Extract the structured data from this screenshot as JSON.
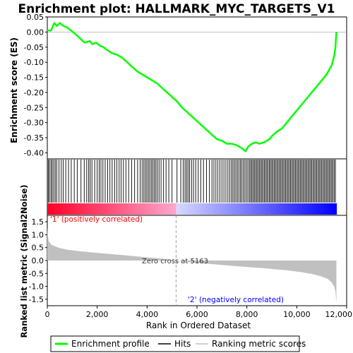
{
  "chart_data": {
    "type": "line",
    "title": "Enrichment plot: HALLMARK_MYC_TARGETS_V1",
    "top_panel": {
      "ylabel": "Enrichment score (ES)",
      "ylim": [
        -0.42,
        0.05
      ],
      "yticks": [
        "0.05",
        "0.00",
        "-0.05",
        "-0.10",
        "-0.15",
        "-0.20",
        "-0.25",
        "-0.30",
        "-0.35",
        "-0.40"
      ],
      "ytick_values": [
        0.05,
        0.0,
        -0.05,
        -0.1,
        -0.15,
        -0.2,
        -0.25,
        -0.3,
        -0.35,
        -0.4
      ],
      "series": [
        {
          "name": "Enrichment profile",
          "color": "#00ff00",
          "x": [
            0,
            150,
            280,
            380,
            500,
            650,
            800,
            950,
            1100,
            1300,
            1500,
            1700,
            1800,
            1950,
            2100,
            2250,
            2400,
            2600,
            2800,
            3000,
            3200,
            3400,
            3600,
            3800,
            4000,
            4200,
            4400,
            4600,
            4800,
            5000,
            5200,
            5400,
            5600,
            5800,
            6000,
            6200,
            6400,
            6600,
            6800,
            7000,
            7200,
            7400,
            7600,
            7800,
            7950,
            8050,
            8200,
            8350,
            8500,
            8700,
            8900,
            9000,
            9200,
            9400,
            9600,
            9800,
            10000,
            10200,
            10400,
            10600,
            10800,
            11000,
            11200,
            11400,
            11500,
            11550,
            11590
          ],
          "y": [
            0.005,
            0.005,
            0.03,
            0.02,
            0.03,
            0.02,
            0.015,
            0.005,
            -0.005,
            -0.02,
            -0.035,
            -0.03,
            -0.04,
            -0.035,
            -0.045,
            -0.05,
            -0.06,
            -0.07,
            -0.075,
            -0.085,
            -0.1,
            -0.115,
            -0.13,
            -0.14,
            -0.15,
            -0.16,
            -0.17,
            -0.185,
            -0.2,
            -0.215,
            -0.23,
            -0.25,
            -0.265,
            -0.28,
            -0.295,
            -0.31,
            -0.325,
            -0.34,
            -0.355,
            -0.36,
            -0.37,
            -0.37,
            -0.375,
            -0.385,
            -0.395,
            -0.38,
            -0.37,
            -0.365,
            -0.37,
            -0.365,
            -0.355,
            -0.345,
            -0.33,
            -0.32,
            -0.3,
            -0.28,
            -0.26,
            -0.24,
            -0.22,
            -0.2,
            -0.18,
            -0.16,
            -0.14,
            -0.11,
            -0.08,
            -0.05,
            0.0
          ]
        }
      ]
    },
    "middle_panel": {
      "hits_label": "Hits",
      "hit_positions": [
        40,
        90,
        150,
        200,
        260,
        320,
        380,
        470,
        560,
        640,
        740,
        850,
        960,
        1080,
        1200,
        1350,
        1480,
        1580,
        1660,
        1720,
        1790,
        1900,
        2000,
        2080,
        2150,
        2230,
        2320,
        2420,
        2510,
        2600,
        2700,
        2790,
        2880,
        2960,
        3050,
        3150,
        3260,
        3380,
        3500,
        3620,
        3720,
        3800,
        3870,
        3930,
        3990,
        4050,
        4110,
        4170,
        4230,
        4290,
        4350,
        4410,
        4480,
        4560,
        4660,
        4760,
        4870,
        5000,
        5200,
        5350,
        5450,
        5520,
        5580,
        5640,
        5700,
        5780,
        5860,
        5950,
        6050,
        6150,
        6260,
        6380,
        6500,
        6600,
        6680,
        6760,
        6840,
        6920,
        7000,
        7080,
        7160,
        7240,
        7310,
        7380,
        7440,
        7500,
        7560,
        7620,
        7680,
        7740,
        7800,
        7860,
        7920,
        7980,
        8040,
        8100,
        8150,
        8200,
        8250,
        8300,
        8350,
        8400,
        8450,
        8500,
        8550,
        8600,
        8650,
        8700,
        8750,
        8800,
        8850,
        8900,
        8950,
        9000,
        9050,
        9100,
        9150,
        9200,
        9250,
        9300,
        9350,
        9400,
        9450,
        9500,
        9550,
        9600,
        9650,
        9700,
        9750,
        9800,
        9850,
        9900,
        9950,
        10000,
        10050,
        10100,
        10150,
        10200,
        10250,
        10300,
        10350,
        10400,
        10450,
        10500,
        10550,
        10600,
        10650,
        10700,
        10750,
        10800,
        10850,
        10900,
        10950,
        11000,
        11050,
        11100,
        11150,
        11200,
        11250,
        11300,
        11350,
        11400,
        11450,
        11500,
        11550
      ]
    },
    "lower_panel": {
      "ylabel": "Ranked list metric (Signal2Noise)",
      "xlabel": "Rank in Ordered Dataset",
      "ylim": [
        -1.75,
        1.75
      ],
      "yticks": [
        "1.5",
        "1.0",
        "0.5",
        "0.0",
        "-0.5",
        "-1.0",
        "-1.5"
      ],
      "ytick_values": [
        1.5,
        1.0,
        0.5,
        0.0,
        -0.5,
        -1.0,
        -1.5
      ],
      "xlim": [
        0,
        12000
      ],
      "xticks": [
        "0",
        "2,000",
        "4,000",
        "6,000",
        "8,000",
        "10,000",
        "12,000"
      ],
      "xtick_values": [
        0,
        2000,
        4000,
        6000,
        8000,
        10000,
        12000
      ],
      "metric_x": [
        0,
        20,
        60,
        150,
        300,
        500,
        800,
        1200,
        1700,
        2300,
        3000,
        3800,
        4500,
        5163,
        5800,
        6500,
        7200,
        8000,
        8800,
        9600,
        10200,
        10700,
        11000,
        11250,
        11400,
        11500,
        11550,
        11590
      ],
      "metric_y": [
        1.3,
        0.95,
        0.75,
        0.62,
        0.55,
        0.48,
        0.42,
        0.37,
        0.32,
        0.27,
        0.21,
        0.14,
        0.08,
        0.0,
        -0.07,
        -0.13,
        -0.19,
        -0.25,
        -0.31,
        -0.38,
        -0.45,
        -0.54,
        -0.62,
        -0.72,
        -0.85,
        -1.0,
        -1.2,
        -1.62
      ],
      "zero_cross_label": "Zero cross at 5163",
      "zero_cross_x": 5163,
      "positive_label": "'1' (positively correlated)",
      "negative_label": "'2' (negatively correlated)"
    },
    "colors": {
      "profile": "#00ff00",
      "metric_fill": "#c0c0c0",
      "positive": "#ff0000",
      "negative": "#0000ff",
      "dashed": "#a0a0a0"
    },
    "legend": {
      "placement": "bottom",
      "items": [
        {
          "label": "Enrichment profile",
          "kind": "line-green"
        },
        {
          "label": "Hits",
          "kind": "line-black"
        },
        {
          "label": "Ranking metric scores",
          "kind": "line-gray"
        }
      ]
    }
  }
}
